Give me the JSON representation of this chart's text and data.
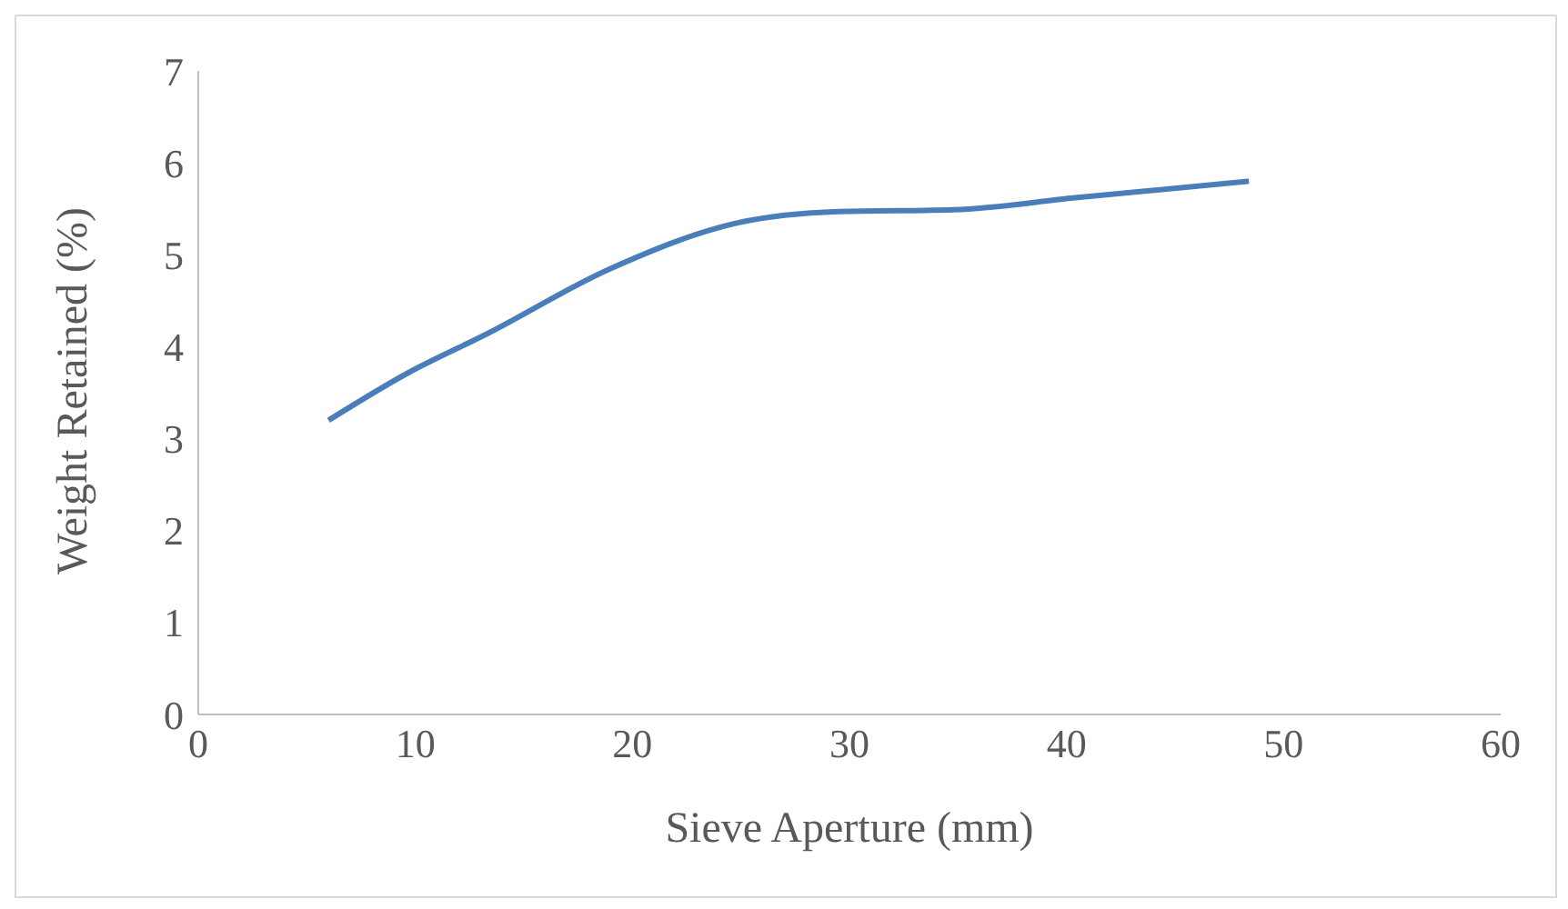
{
  "chart_data": {
    "type": "line",
    "xlabel": "Sieve Aperture (mm)",
    "ylabel": "Weight Retained (%)",
    "x": [
      6,
      9.7,
      13.3,
      18.9,
      24.9,
      29.5,
      34.8,
      40.4,
      48.4
    ],
    "series": [
      {
        "color": "#4a7ebb",
        "values": [
          3.2,
          3.72,
          4.14,
          4.84,
          5.35,
          5.47,
          5.49,
          5.62,
          5.8
        ]
      }
    ],
    "xlim": [
      0,
      60
    ],
    "xticks": [
      0,
      10,
      20,
      30,
      40,
      50,
      60
    ],
    "ylim": [
      0,
      7
    ],
    "yticks": [
      0,
      1,
      2,
      3,
      4,
      5,
      6,
      7
    ],
    "grid": false,
    "legend": false,
    "marker": "none",
    "line_style": "solid"
  }
}
